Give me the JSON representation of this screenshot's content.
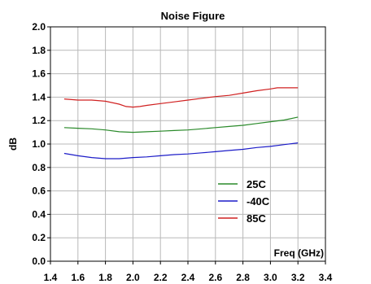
{
  "chart_data": {
    "type": "line",
    "title": "Noise Figure",
    "xlabel": "Freq (GHz)",
    "ylabel": "dB",
    "xlim": [
      1.4,
      3.4
    ],
    "ylim": [
      0.0,
      2.0
    ],
    "x_ticks": [
      "1.4",
      "1.6",
      "1.8",
      "2.0",
      "2.2",
      "2.4",
      "2.6",
      "2.8",
      "3.0",
      "3.2",
      "3.4"
    ],
    "y_ticks": [
      "0.0",
      "0.2",
      "0.4",
      "0.6",
      "0.8",
      "1.0",
      "1.2",
      "1.4",
      "1.6",
      "1.8",
      "2.0"
    ],
    "grid": true,
    "legend_position": "lower-right",
    "series": [
      {
        "name": "25C",
        "color": "#2a8a2a",
        "x": [
          1.5,
          1.6,
          1.7,
          1.8,
          1.9,
          2.0,
          2.1,
          2.2,
          2.3,
          2.4,
          2.5,
          2.6,
          2.7,
          2.8,
          2.9,
          3.0,
          3.1,
          3.2
        ],
        "y": [
          1.14,
          1.135,
          1.13,
          1.12,
          1.105,
          1.1,
          1.105,
          1.11,
          1.115,
          1.12,
          1.13,
          1.14,
          1.15,
          1.16,
          1.175,
          1.19,
          1.205,
          1.23
        ]
      },
      {
        "name": "-40C",
        "color": "#1c1cc8",
        "x": [
          1.5,
          1.6,
          1.7,
          1.8,
          1.9,
          2.0,
          2.1,
          2.2,
          2.3,
          2.4,
          2.5,
          2.6,
          2.7,
          2.8,
          2.9,
          3.0,
          3.1,
          3.2
        ],
        "y": [
          0.92,
          0.9,
          0.885,
          0.875,
          0.875,
          0.885,
          0.89,
          0.9,
          0.91,
          0.915,
          0.925,
          0.935,
          0.945,
          0.955,
          0.97,
          0.98,
          0.995,
          1.01
        ]
      },
      {
        "name": "85C",
        "color": "#d02020",
        "x": [
          1.5,
          1.6,
          1.7,
          1.8,
          1.9,
          1.95,
          2.0,
          2.05,
          2.1,
          2.2,
          2.3,
          2.4,
          2.5,
          2.6,
          2.7,
          2.8,
          2.9,
          3.0,
          3.05,
          3.1,
          3.2
        ],
        "y": [
          1.385,
          1.375,
          1.375,
          1.365,
          1.34,
          1.32,
          1.315,
          1.32,
          1.33,
          1.345,
          1.36,
          1.375,
          1.39,
          1.405,
          1.415,
          1.435,
          1.455,
          1.47,
          1.48,
          1.48,
          1.48
        ]
      }
    ]
  }
}
